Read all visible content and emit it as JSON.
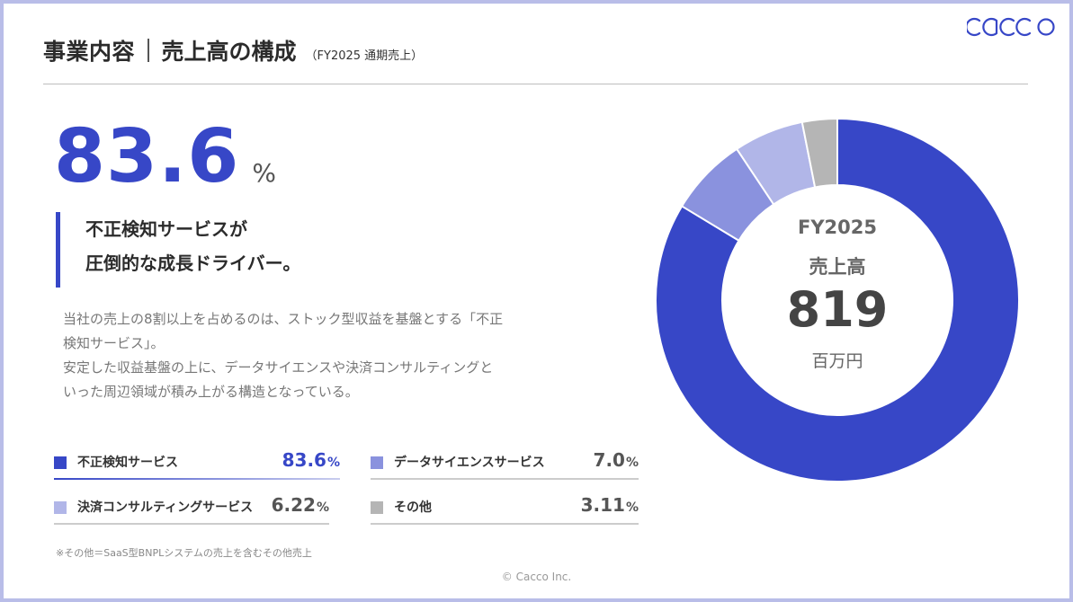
{
  "header": {
    "section": "事業内容",
    "title": "売上高の構成",
    "period_note": "（FY2025 通期売上）"
  },
  "logo": {
    "text": "cacco"
  },
  "headline": {
    "value": "83.6",
    "unit": "%"
  },
  "tagline": [
    "不正検知サービスが",
    "圧倒的な成長ドライバー。"
  ],
  "description": [
    "当社の売上の8割以上を占めるのは、ストック型収益を基盤とする「不正",
    "検知サービス」。",
    "安定した収益基盤の上に、データサイエンスや決済コンサルティングと",
    "いった周辺領域が積み上がる構造となっている。"
  ],
  "footnote": "※その他＝SaaS型BNPLシステムの売上を含むその他売上",
  "copyright": "© Cacco Inc.",
  "chart_data": {
    "type": "pie",
    "donut": true,
    "center_text": {
      "year": "FY2025",
      "label": "売上高",
      "value": "819",
      "unit": "百万円"
    },
    "legend_position": "bottom-left",
    "unit": "%",
    "slices": [
      {
        "label": "不正検知サービス",
        "value": 83.6,
        "display": "83.6",
        "color": "#3747c7",
        "highlight": true
      },
      {
        "label": "データサイエンスサービス",
        "value": 7.0,
        "display": "7.0",
        "color": "#8a92de",
        "highlight": false
      },
      {
        "label": "決済コンサルティングサービス",
        "value": 6.22,
        "display": "6.22",
        "color": "#b1b6e8",
        "highlight": false
      },
      {
        "label": "その他",
        "value": 3.11,
        "display": "3.11",
        "color": "#b5b5b5",
        "highlight": false
      }
    ]
  }
}
